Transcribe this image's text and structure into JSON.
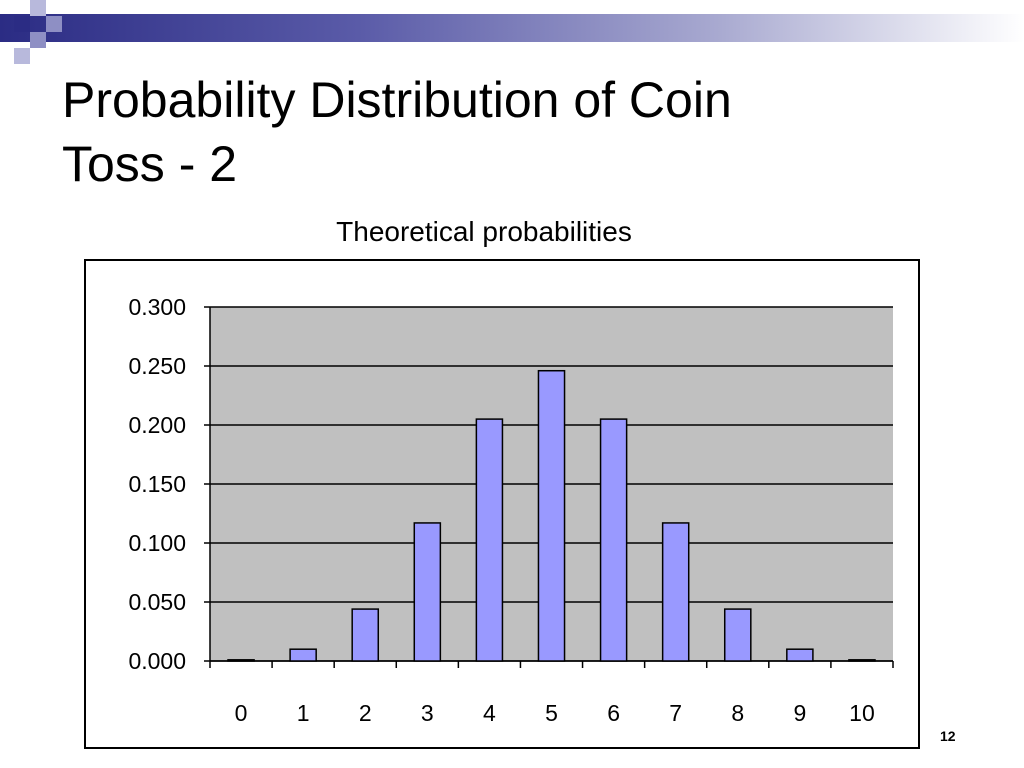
{
  "slide": {
    "title_line1": "Probability Distribution of Coin",
    "title_line2": "Toss - 2",
    "page_number": "12"
  },
  "colors": {
    "bar_fill": "#9999ff",
    "plot_bg": "#c0c0c0",
    "band_dark": "#2b2c84"
  },
  "chart_data": {
    "type": "bar",
    "title": "Theoretical probabilities",
    "xlabel": "",
    "ylabel": "",
    "categories": [
      "0",
      "1",
      "2",
      "3",
      "4",
      "5",
      "6",
      "7",
      "8",
      "9",
      "10"
    ],
    "values": [
      0.001,
      0.01,
      0.044,
      0.117,
      0.205,
      0.246,
      0.205,
      0.117,
      0.044,
      0.01,
      0.001
    ],
    "ylim": [
      0,
      0.3
    ],
    "yticks": [
      "0.000",
      "0.050",
      "0.100",
      "0.150",
      "0.200",
      "0.250",
      "0.300"
    ],
    "grid": true,
    "legend": "none"
  }
}
